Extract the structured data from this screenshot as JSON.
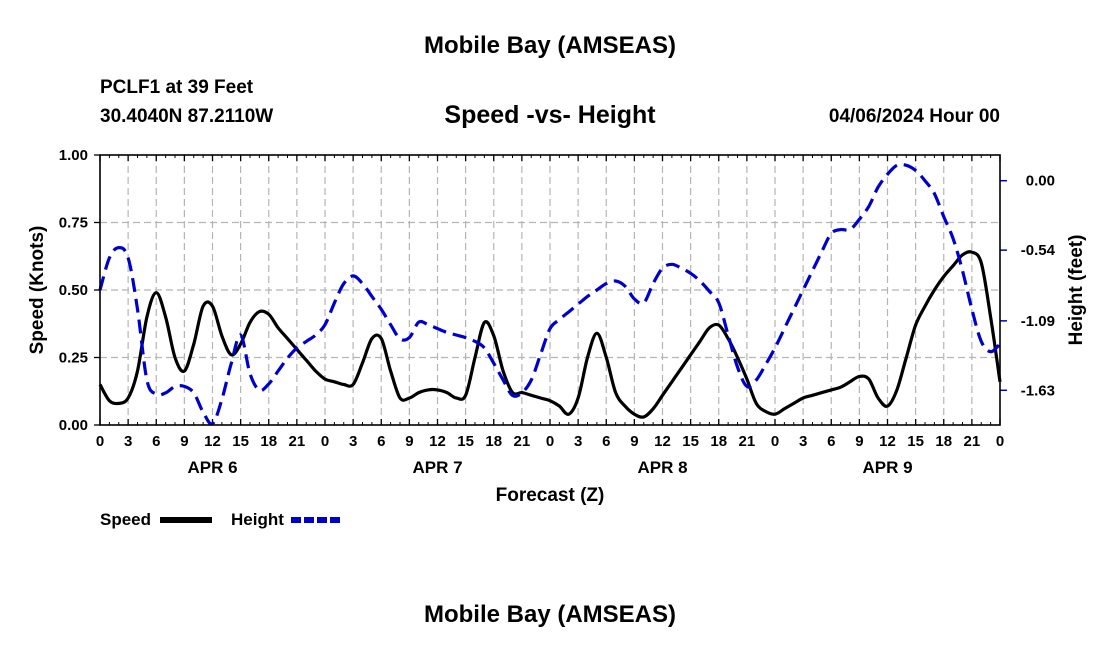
{
  "header": {
    "title": "Mobile Bay (AMSEAS)",
    "station": "PCLF1 at 39 Feet",
    "coords": "30.4040N  87.2110W",
    "subtitle": "Speed -vs- Height",
    "datetime": "04/06/2024 Hour 00"
  },
  "footer": {
    "title": "Mobile Bay (AMSEAS)"
  },
  "legend": {
    "speed_label": "Speed",
    "height_label": "Height"
  },
  "chart_data": {
    "type": "line",
    "title": "Speed -vs- Height",
    "xlabel": "Forecast (Z)",
    "ylabel_left": "Speed (Knots)",
    "ylabel_right": "Height (feet)",
    "xlim": [
      0,
      96
    ],
    "ylim_left": [
      0,
      1
    ],
    "ylim_right": [
      -1.9,
      0.2
    ],
    "x_ticks": [
      0,
      3,
      6,
      9,
      12,
      15,
      18,
      21,
      24,
      27,
      30,
      33,
      36,
      39,
      42,
      45,
      48,
      51,
      54,
      57,
      60,
      63,
      66,
      69,
      72,
      75,
      78,
      81,
      84,
      87,
      90,
      93,
      96
    ],
    "x_tick_labels": [
      "0",
      "3",
      "6",
      "9",
      "12",
      "15",
      "18",
      "21",
      "0",
      "3",
      "6",
      "9",
      "12",
      "15",
      "18",
      "21",
      "0",
      "3",
      "6",
      "9",
      "12",
      "15",
      "18",
      "21",
      "0",
      "3",
      "6",
      "9",
      "12",
      "15",
      "18",
      "21",
      "0"
    ],
    "day_labels": [
      {
        "x": 12,
        "label": "APR 6"
      },
      {
        "x": 36,
        "label": "APR 7"
      },
      {
        "x": 60,
        "label": "APR 8"
      },
      {
        "x": 84,
        "label": "APR 9"
      }
    ],
    "y_left_ticks": [
      0,
      0.25,
      0.5,
      0.75,
      1.0
    ],
    "y_left_tick_labels": [
      "0.00",
      "0.25",
      "0.50",
      "0.75",
      "1.00"
    ],
    "y_right_ticks": [
      0.0,
      -0.54,
      -1.09,
      -1.63
    ],
    "y_right_tick_labels": [
      "0.00",
      "-0.54",
      "-1.09",
      "-1.63"
    ],
    "grid": true,
    "legend_position": "bottom-left",
    "series": [
      {
        "name": "Speed",
        "axis": "left",
        "color": "#000000",
        "style": "solid",
        "x": [
          0,
          1,
          2,
          3,
          4,
          5,
          6,
          7,
          8,
          9,
          10,
          11,
          12,
          13,
          14,
          15,
          16,
          17,
          18,
          19,
          20,
          21,
          22,
          23,
          24,
          25,
          26,
          27,
          28,
          29,
          30,
          31,
          32,
          33,
          34,
          35,
          36,
          37,
          38,
          39,
          40,
          41,
          42,
          43,
          44,
          45,
          46,
          47,
          48,
          49,
          50,
          51,
          52,
          53,
          54,
          55,
          56,
          57,
          58,
          59,
          60,
          61,
          62,
          63,
          64,
          65,
          66,
          67,
          68,
          69,
          70,
          71,
          72,
          73,
          74,
          75,
          76,
          77,
          78,
          79,
          80,
          81,
          82,
          83,
          84,
          85,
          86,
          87,
          88,
          89,
          90,
          91,
          92,
          93,
          94,
          95,
          96
        ],
        "values": [
          0.15,
          0.09,
          0.08,
          0.1,
          0.2,
          0.4,
          0.49,
          0.4,
          0.25,
          0.2,
          0.3,
          0.44,
          0.44,
          0.33,
          0.26,
          0.3,
          0.38,
          0.42,
          0.41,
          0.36,
          0.32,
          0.28,
          0.24,
          0.2,
          0.17,
          0.16,
          0.15,
          0.15,
          0.23,
          0.32,
          0.32,
          0.2,
          0.1,
          0.1,
          0.12,
          0.13,
          0.13,
          0.12,
          0.1,
          0.11,
          0.25,
          0.38,
          0.33,
          0.2,
          0.12,
          0.12,
          0.11,
          0.1,
          0.09,
          0.07,
          0.04,
          0.1,
          0.25,
          0.34,
          0.25,
          0.12,
          0.07,
          0.04,
          0.03,
          0.06,
          0.11,
          0.16,
          0.21,
          0.26,
          0.31,
          0.36,
          0.37,
          0.32,
          0.25,
          0.17,
          0.08,
          0.05,
          0.04,
          0.06,
          0.08,
          0.1,
          0.11,
          0.12,
          0.13,
          0.14,
          0.16,
          0.18,
          0.17,
          0.1,
          0.07,
          0.13,
          0.25,
          0.37,
          0.44,
          0.5,
          0.55,
          0.59,
          0.63,
          0.64,
          0.6,
          0.4,
          0.16
        ]
      },
      {
        "name": "Height",
        "axis": "right",
        "color": "#0000cc",
        "style": "dashed",
        "x": [
          0,
          1,
          2,
          3,
          4,
          5,
          6,
          7,
          8,
          9,
          10,
          11,
          12,
          13,
          14,
          15,
          16,
          17,
          18,
          19,
          20,
          21,
          22,
          23,
          24,
          25,
          26,
          27,
          28,
          29,
          30,
          31,
          32,
          33,
          34,
          35,
          36,
          37,
          38,
          39,
          40,
          41,
          42,
          43,
          44,
          45,
          46,
          47,
          48,
          49,
          50,
          51,
          52,
          53,
          54,
          55,
          56,
          57,
          58,
          59,
          60,
          61,
          62,
          63,
          64,
          65,
          66,
          67,
          68,
          69,
          70,
          71,
          72,
          73,
          74,
          75,
          76,
          77,
          78,
          79,
          80,
          81,
          82,
          83,
          84,
          85,
          86,
          87,
          88,
          89,
          90,
          91,
          92,
          93,
          94,
          95,
          96
        ],
        "values": [
          -0.85,
          -0.6,
          -0.52,
          -0.6,
          -1.0,
          -1.55,
          -1.66,
          -1.65,
          -1.6,
          -1.6,
          -1.65,
          -1.8,
          -1.89,
          -1.7,
          -1.42,
          -1.2,
          -1.5,
          -1.63,
          -1.58,
          -1.48,
          -1.38,
          -1.3,
          -1.25,
          -1.2,
          -1.12,
          -0.95,
          -0.8,
          -0.74,
          -0.8,
          -0.9,
          -1.0,
          -1.12,
          -1.23,
          -1.22,
          -1.1,
          -1.12,
          -1.15,
          -1.18,
          -1.2,
          -1.22,
          -1.25,
          -1.3,
          -1.42,
          -1.55,
          -1.67,
          -1.65,
          -1.55,
          -1.35,
          -1.15,
          -1.08,
          -1.02,
          -0.96,
          -0.9,
          -0.85,
          -0.8,
          -0.78,
          -0.82,
          -0.92,
          -0.95,
          -0.8,
          -0.68,
          -0.65,
          -0.68,
          -0.72,
          -0.78,
          -0.86,
          -0.95,
          -1.2,
          -1.45,
          -1.6,
          -1.55,
          -1.43,
          -1.3,
          -1.15,
          -1.0,
          -0.85,
          -0.7,
          -0.55,
          -0.41,
          -0.38,
          -0.38,
          -0.3,
          -0.2,
          -0.05,
          0.05,
          0.12,
          0.12,
          0.08,
          0.0,
          -0.1,
          -0.28,
          -0.45,
          -0.7,
          -1.0,
          -1.25,
          -1.33,
          -1.27
        ]
      }
    ]
  }
}
